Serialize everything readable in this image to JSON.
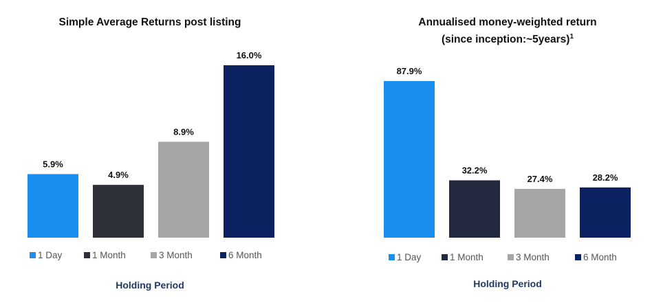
{
  "chart_data": [
    {
      "type": "bar",
      "title": "Simple Average Returns post listing",
      "title_line2": "",
      "title_superscript": "",
      "xlabel": "Holding Period",
      "ylabel": "",
      "categories": [
        "1 Day",
        "1 Month",
        "3 Month",
        "6 Month"
      ],
      "values": [
        5.9,
        4.9,
        8.9,
        16.0
      ],
      "value_labels": [
        "5.9%",
        "4.9%",
        "8.9%",
        "16.0%"
      ],
      "colors": [
        "#1a8ff0",
        "#2e3038",
        "#a6a6a6",
        "#0c2160"
      ],
      "ylim": [
        0,
        16.0
      ],
      "grid": false,
      "legend_position": "bottom"
    },
    {
      "type": "bar",
      "title": "Annualised money-weighted return",
      "title_line2": "(since inception:~5years)",
      "title_superscript": "1",
      "xlabel": "Holding Period",
      "ylabel": "",
      "categories": [
        "1 Day",
        "1 Month",
        "3 Month",
        "6 Month"
      ],
      "values": [
        87.9,
        32.2,
        27.4,
        28.2
      ],
      "value_labels": [
        "87.9%",
        "32.2%",
        "27.4%",
        "28.2%"
      ],
      "colors": [
        "#1a8ff0",
        "#232a40",
        "#a6a6a6",
        "#0c2160"
      ],
      "ylim": [
        0,
        87.9
      ],
      "grid": false,
      "legend_position": "bottom"
    }
  ]
}
